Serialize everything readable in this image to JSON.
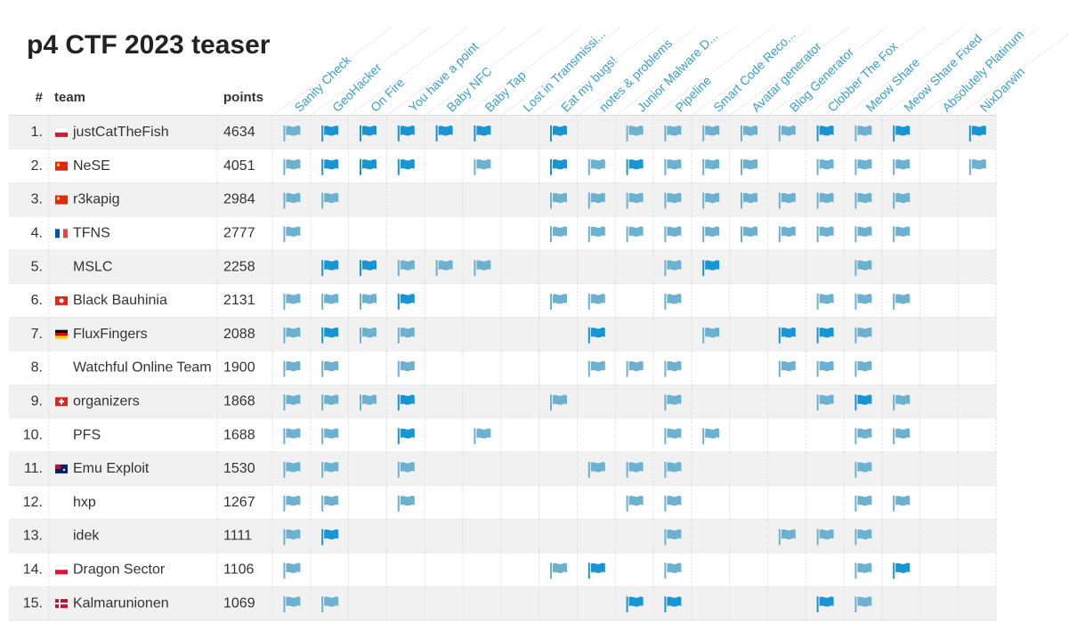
{
  "title": "p4 CTF 2023 teaser",
  "table": {
    "headers": [
      "#",
      "team",
      "points"
    ],
    "challenges": [
      "Sanity Check",
      "GeoHacker",
      "On Fire",
      "You have a point",
      "Baby NFC",
      "Baby Tap",
      "Lost in Transmissi...",
      "Eat my bugs!",
      "notes & problems",
      "Junior Malware D...",
      "Pipeline",
      "Smart Code Reco...",
      "Avatar generator",
      "Blog Generator",
      "Clobber The Fox",
      "Meow Share",
      "Meow Share Fixed",
      "Absolutely Platinum",
      "NixDarwin"
    ],
    "rows": [
      {
        "rank": "1.",
        "team": "justCatTheFish",
        "points": 4634,
        "country": "pl",
        "solves": [
          1,
          2,
          2,
          2,
          2,
          2,
          0,
          2,
          0,
          1,
          1,
          1,
          1,
          1,
          2,
          1,
          2,
          0,
          2
        ]
      },
      {
        "rank": "2.",
        "team": "NeSE",
        "points": 4051,
        "country": "cn",
        "solves": [
          1,
          2,
          2,
          2,
          0,
          1,
          0,
          2,
          1,
          2,
          1,
          1,
          1,
          0,
          1,
          1,
          1,
          0,
          1
        ]
      },
      {
        "rank": "3.",
        "team": "r3kapig",
        "points": 2984,
        "country": "cn",
        "solves": [
          1,
          1,
          0,
          0,
          0,
          0,
          0,
          1,
          1,
          1,
          1,
          1,
          1,
          1,
          1,
          1,
          1,
          0,
          0
        ]
      },
      {
        "rank": "4.",
        "team": "TFNS",
        "points": 2777,
        "country": "fr",
        "solves": [
          1,
          0,
          0,
          0,
          0,
          0,
          0,
          1,
          1,
          1,
          1,
          1,
          1,
          1,
          1,
          1,
          1,
          0,
          0
        ]
      },
      {
        "rank": "5.",
        "team": "MSLC",
        "points": 2258,
        "country": null,
        "solves": [
          0,
          2,
          2,
          1,
          1,
          1,
          0,
          0,
          0,
          0,
          1,
          2,
          0,
          0,
          0,
          1,
          0,
          0,
          0
        ]
      },
      {
        "rank": "6.",
        "team": "Black Bauhinia",
        "points": 2131,
        "country": "hk",
        "solves": [
          1,
          1,
          1,
          2,
          0,
          0,
          0,
          1,
          1,
          0,
          1,
          0,
          0,
          0,
          1,
          1,
          1,
          0,
          0
        ]
      },
      {
        "rank": "7.",
        "team": "FluxFingers",
        "points": 2088,
        "country": "de",
        "solves": [
          1,
          2,
          1,
          1,
          0,
          0,
          0,
          0,
          2,
          0,
          0,
          1,
          0,
          2,
          2,
          1,
          0,
          0,
          0
        ]
      },
      {
        "rank": "8.",
        "team": "Watchful Online Team",
        "points": 1900,
        "country": null,
        "solves": [
          1,
          1,
          0,
          1,
          0,
          0,
          0,
          0,
          1,
          1,
          1,
          0,
          0,
          1,
          1,
          1,
          0,
          0,
          0
        ]
      },
      {
        "rank": "9.",
        "team": "organizers",
        "points": 1868,
        "country": "ch",
        "solves": [
          1,
          1,
          1,
          2,
          0,
          0,
          0,
          1,
          0,
          0,
          1,
          0,
          0,
          0,
          1,
          2,
          1,
          0,
          0
        ]
      },
      {
        "rank": "10.",
        "team": "PFS",
        "points": 1688,
        "country": null,
        "solves": [
          1,
          1,
          0,
          2,
          0,
          1,
          0,
          0,
          0,
          0,
          1,
          1,
          0,
          0,
          0,
          1,
          1,
          0,
          0
        ]
      },
      {
        "rank": "11.",
        "team": "Emu Exploit",
        "points": 1530,
        "country": "au",
        "solves": [
          1,
          1,
          0,
          1,
          0,
          0,
          0,
          0,
          1,
          1,
          1,
          0,
          0,
          0,
          0,
          1,
          0,
          0,
          0
        ]
      },
      {
        "rank": "12.",
        "team": "hxp",
        "points": 1267,
        "country": null,
        "solves": [
          1,
          1,
          0,
          1,
          0,
          0,
          0,
          0,
          0,
          1,
          1,
          0,
          0,
          0,
          0,
          1,
          1,
          0,
          0
        ]
      },
      {
        "rank": "13.",
        "team": "idek",
        "points": 1111,
        "country": null,
        "solves": [
          1,
          2,
          0,
          0,
          0,
          0,
          0,
          0,
          0,
          0,
          1,
          0,
          0,
          1,
          1,
          1,
          0,
          0,
          0
        ]
      },
      {
        "rank": "14.",
        "team": "Dragon Sector",
        "points": 1106,
        "country": "pl",
        "solves": [
          1,
          0,
          0,
          0,
          0,
          0,
          0,
          1,
          2,
          0,
          1,
          0,
          0,
          0,
          0,
          1,
          2,
          0,
          0
        ]
      },
      {
        "rank": "15.",
        "team": "Kalmarunionen",
        "points": 1069,
        "country": "dk",
        "solves": [
          1,
          1,
          0,
          0,
          0,
          0,
          0,
          0,
          0,
          2,
          2,
          0,
          0,
          0,
          2,
          1,
          0,
          0,
          0
        ]
      }
    ]
  }
}
